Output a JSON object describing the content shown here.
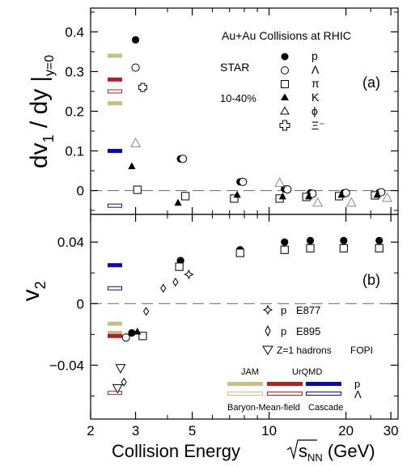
{
  "chart_data": [
    {
      "type": "scatter",
      "panel_label": "(a)",
      "ylabel_main": "dv",
      "ylabel_sub": "1",
      "ylabel_mid": " / dy ",
      "ylabel_eval": "y=0",
      "xscale": "log",
      "xlim": [
        2,
        32
      ],
      "ylim": [
        -0.06,
        0.46
      ],
      "yticks": [
        0,
        0.1,
        0.2,
        0.3,
        0.4
      ],
      "ytick_labels": [
        "0",
        "0.1",
        "0.2",
        "0.3",
        "0.4"
      ],
      "zero_line": true,
      "annotations": {
        "system": "Au+Au Collisions at RHIC",
        "experiment": "STAR",
        "centrality": "10-40%"
      },
      "legend": [
        {
          "marker": "filled-circle",
          "label": "p"
        },
        {
          "marker": "open-circle",
          "label": "Λ"
        },
        {
          "marker": "open-square",
          "label": "π"
        },
        {
          "marker": "filled-triangle",
          "label": "K"
        },
        {
          "marker": "open-triangle",
          "label": "ϕ"
        },
        {
          "marker": "open-cross",
          "label": "Ξ⁻"
        }
      ],
      "series": [
        {
          "name": "p",
          "marker": "filled-circle",
          "color": "#000000",
          "x": [
            3.0,
            4.5,
            7.7,
            11.5,
            14.5,
            19.6,
            27.0
          ],
          "y": [
            0.38,
            0.08,
            0.022,
            0.004,
            -0.006,
            -0.006,
            -0.005
          ]
        },
        {
          "name": "Λ",
          "marker": "open-circle",
          "color": "#000000",
          "x": [
            3.0,
            4.6,
            7.9,
            11.8,
            14.8,
            20.0,
            27.5
          ],
          "y": [
            0.31,
            0.08,
            0.022,
            0.003,
            -0.008,
            -0.006,
            -0.004
          ]
        },
        {
          "name": "π",
          "marker": "open-square",
          "color": "#000000",
          "x": [
            3.05,
            4.7,
            7.3,
            11.0,
            14.0,
            18.8,
            26.0
          ],
          "y": [
            0.002,
            -0.014,
            -0.02,
            -0.02,
            -0.016,
            -0.014,
            -0.012
          ]
        },
        {
          "name": "K",
          "marker": "filled-triangle",
          "color": "#000000",
          "x": [
            2.9,
            4.4,
            7.5,
            11.3,
            14.3,
            19.2,
            26.5
          ],
          "y": [
            0.062,
            -0.03,
            -0.01,
            -0.014,
            -0.014,
            -0.01,
            -0.01
          ]
        },
        {
          "name": "ϕ",
          "marker": "open-triangle",
          "color": "#888888",
          "x": [
            3.0,
            11.0,
            15.5,
            21.0,
            29.0
          ],
          "y": [
            0.12,
            0.02,
            -0.03,
            -0.03,
            -0.018
          ]
        },
        {
          "name": "Ξ⁻",
          "marker": "open-cross",
          "color": "#000000",
          "x": [
            3.2
          ],
          "y": [
            0.26
          ]
        }
      ],
      "model_bands": [
        {
          "name": "JAM",
          "color": "#c8c080",
          "style": "filled",
          "y": [
            0.34,
            0.22
          ]
        },
        {
          "name": "UrQMD",
          "color": "#b22222",
          "style": "filled",
          "y": [
            0.28
          ]
        },
        {
          "name": "UrQMD",
          "color": "#b22222",
          "style": "open",
          "y": [
            0.25
          ]
        },
        {
          "name": "Cascade",
          "color": "#0a0ab0",
          "style": "filled",
          "y": [
            0.1
          ]
        },
        {
          "name": "Cascade",
          "color": "#0a0ab0",
          "style": "open",
          "y": [
            -0.038
          ]
        }
      ]
    },
    {
      "type": "scatter",
      "panel_label": "(b)",
      "ylabel_main": "v",
      "ylabel_sub": "2",
      "xlabel": "Collision Energy",
      "xlabel_sqrt": "s",
      "xlabel_sub": "NN",
      "xlabel_unit": " (GeV)",
      "xscale": "log",
      "xlim": [
        2,
        32
      ],
      "xticks": [
        2,
        3,
        5,
        10,
        20,
        30
      ],
      "xtick_labels": [
        "2",
        "3",
        "5",
        "10",
        "20",
        "30"
      ],
      "ylim": [
        -0.075,
        0.058
      ],
      "yticks": [
        -0.04,
        0,
        0.04
      ],
      "ytick_labels": [
        "−0.04",
        "0",
        "0.04"
      ],
      "zero_line": true,
      "legend": [
        {
          "marker": "open-star",
          "label": "p",
          "experiment": "E877"
        },
        {
          "marker": "open-diamond",
          "label": "p",
          "experiment": "E895"
        },
        {
          "marker": "open-down-triangle",
          "label": "Z=1 hadrons",
          "experiment": "FOPI"
        }
      ],
      "model_legend": {
        "jam": "JAM",
        "urqmd": "UrQMD",
        "p_label": "p",
        "lambda_label": "Λ",
        "baryon_mean_field": "Baryon-Mean-field",
        "cascade": "Cascade"
      },
      "series": [
        {
          "name": "p",
          "marker": "filled-circle",
          "color": "#000000",
          "x": [
            2.9,
            4.5,
            7.7,
            11.5,
            14.5,
            19.6,
            27.0
          ],
          "y": [
            -0.019,
            0.028,
            0.035,
            0.04,
            0.041,
            0.041,
            0.041
          ]
        },
        {
          "name": "Λ",
          "marker": "open-circle",
          "color": "#000000",
          "x": [
            2.75
          ],
          "y": [
            -0.022
          ]
        },
        {
          "name": "π",
          "marker": "open-square",
          "color": "#000000",
          "x": [
            3.2,
            4.45,
            7.7,
            11.5,
            14.5,
            19.6,
            27.0
          ],
          "y": [
            -0.021,
            0.024,
            0.033,
            0.035,
            0.036,
            0.036,
            0.036
          ]
        },
        {
          "name": "K",
          "marker": "filled-triangle",
          "color": "#000000",
          "x": [
            3.05
          ],
          "y": [
            -0.018
          ]
        },
        {
          "name": "E877 p",
          "marker": "open-star",
          "color": "#000000",
          "x": [
            4.85
          ],
          "y": [
            0.019
          ]
        },
        {
          "name": "E895 p",
          "marker": "open-diamond",
          "color": "#000000",
          "x": [
            2.7,
            3.3,
            3.85,
            4.3
          ],
          "y": [
            -0.051,
            -0.005,
            0.01,
            0.014
          ]
        },
        {
          "name": "FOPI Z=1 hadrons",
          "marker": "open-down-triangle",
          "color": "#000000",
          "x": [
            2.55,
            2.62
          ],
          "y": [
            -0.055,
            -0.042
          ]
        }
      ],
      "model_bands": [
        {
          "name": "JAM",
          "color": "#c8c080",
          "style": "filled",
          "y": [
            -0.013,
            -0.019
          ]
        },
        {
          "name": "UrQMD",
          "color": "#b22222",
          "style": "filled",
          "y": [
            -0.021
          ]
        },
        {
          "name": "UrQMD",
          "color": "#b22222",
          "style": "open",
          "y": [
            -0.058
          ]
        },
        {
          "name": "Cascade",
          "color": "#0a0ab0",
          "style": "filled",
          "y": [
            0.025
          ]
        },
        {
          "name": "Cascade",
          "color": "#0a0ab0",
          "style": "open",
          "y": [
            0.01
          ]
        }
      ]
    }
  ]
}
